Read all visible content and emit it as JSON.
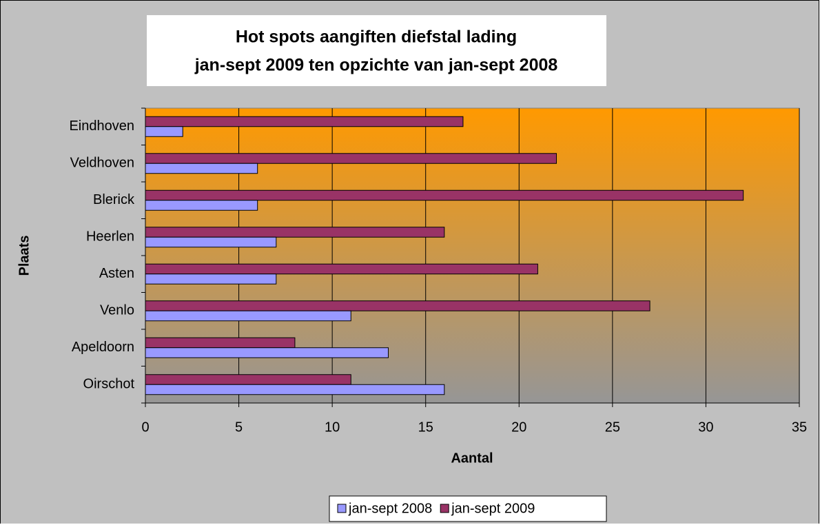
{
  "chart_data": {
    "type": "hbar",
    "title": [
      "Hot spots aangiften diefstal lading",
      "jan-sept 2009 ten opzichte van jan-sept 2008"
    ],
    "xlabel": "Aantal",
    "ylabel": "Plaats",
    "categories": [
      "Eindhoven",
      "Veldhoven",
      "Blerick",
      "Heerlen",
      "Asten",
      "Venlo",
      "Apeldoorn",
      "Oirschot"
    ],
    "series": [
      {
        "name": "jan-sept 2008",
        "color": "#9999ff",
        "values": [
          2,
          6,
          6,
          7,
          7,
          11,
          13,
          16
        ]
      },
      {
        "name": "jan-sept 2009",
        "color": "#993366",
        "values": [
          17,
          22,
          32,
          16,
          21,
          27,
          8,
          11
        ]
      }
    ],
    "xlim": [
      0,
      35
    ],
    "xticks": [
      0,
      5,
      10,
      15,
      20,
      25,
      30,
      35
    ],
    "grid": true,
    "legend": "bottom"
  }
}
